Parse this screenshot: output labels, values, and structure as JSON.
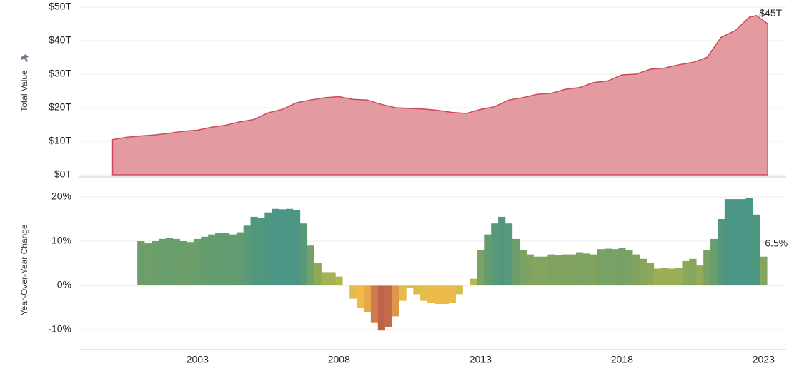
{
  "chart_data": [
    {
      "type": "area",
      "ylabel": "Total Value",
      "color": "#e39aa1",
      "line_color": "#d0485a",
      "x": [
        2000,
        2000.5,
        2001,
        2001.5,
        2002,
        2002.5,
        2003,
        2003.5,
        2004,
        2004.5,
        2005,
        2005.5,
        2006,
        2006.5,
        2007,
        2007.5,
        2008,
        2008.5,
        2009,
        2009.5,
        2010,
        2010.5,
        2011,
        2011.5,
        2012,
        2012.5,
        2013,
        2013.5,
        2014,
        2014.5,
        2015,
        2015.5,
        2016,
        2016.5,
        2017,
        2017.5,
        2018,
        2018.5,
        2019,
        2019.5,
        2020,
        2020.5,
        2021,
        2021.5,
        2022,
        2022.5,
        2022.75,
        2023,
        2023.15
      ],
      "values": [
        10.5,
        11.2,
        11.6,
        11.9,
        12.4,
        13,
        13.3,
        14.2,
        14.8,
        15.8,
        16.5,
        18.5,
        19.5,
        21.5,
        22.3,
        23,
        23.3,
        22.5,
        22.3,
        21,
        20,
        19.8,
        19.6,
        19.2,
        18.6,
        18.3,
        19.5,
        20.3,
        22.3,
        23,
        24,
        24.3,
        25.5,
        26,
        27.5,
        28,
        29.8,
        30,
        31.5,
        31.8,
        32.8,
        33.5,
        35,
        41,
        43,
        47,
        47.5,
        46,
        45
      ],
      "value_labels": [
        null,
        null,
        null,
        null,
        null,
        null,
        null,
        null,
        null,
        null,
        null,
        null,
        null,
        null,
        null,
        null,
        null,
        null,
        null,
        null,
        null,
        null,
        null,
        null,
        null,
        null,
        null,
        null,
        null,
        null,
        null,
        null,
        null,
        null,
        null,
        null,
        null,
        null,
        null,
        null,
        null,
        null,
        null,
        null,
        null,
        null,
        null,
        null,
        "$45T"
      ],
      "xlim": [
        1998.8,
        2023.8
      ],
      "ylim": [
        0,
        50
      ],
      "yticks": [
        {
          "value": 0,
          "label": "$0T"
        },
        {
          "value": 10,
          "label": "$10T"
        },
        {
          "value": 20,
          "label": "$20T"
        },
        {
          "value": 30,
          "label": "$30T"
        },
        {
          "value": 40,
          "label": "$40T"
        },
        {
          "value": 50,
          "label": "$50T"
        }
      ],
      "grid": true
    },
    {
      "type": "bar",
      "ylabel": "Year-Over-Year Change",
      "x": [
        2001,
        2001.25,
        2001.5,
        2001.75,
        2002,
        2002.25,
        2002.5,
        2002.75,
        2003,
        2003.25,
        2003.5,
        2003.75,
        2004,
        2004.25,
        2004.5,
        2004.75,
        2005,
        2005.25,
        2005.5,
        2005.75,
        2006,
        2006.25,
        2006.5,
        2006.75,
        2007,
        2007.25,
        2007.5,
        2007.75,
        2008,
        2008.25,
        2008.5,
        2008.75,
        2009,
        2009.25,
        2009.5,
        2009.75,
        2010,
        2010.25,
        2010.5,
        2010.75,
        2011,
        2011.25,
        2011.5,
        2011.75,
        2012,
        2012.25,
        2012.5,
        2012.75,
        2013,
        2013.25,
        2013.5,
        2013.75,
        2014,
        2014.25,
        2014.5,
        2014.75,
        2015,
        2015.25,
        2015.5,
        2015.75,
        2016,
        2016.25,
        2016.5,
        2016.75,
        2017,
        2017.25,
        2017.5,
        2017.75,
        2018,
        2018.25,
        2018.5,
        2018.75,
        2019,
        2019.25,
        2019.5,
        2019.75,
        2020,
        2020.25,
        2020.5,
        2020.75,
        2021,
        2021.25,
        2021.5,
        2021.75,
        2022,
        2022.25,
        2022.5,
        2022.75,
        2023
      ],
      "values": [
        10,
        9.5,
        10,
        10.5,
        10.8,
        10.5,
        10,
        9.8,
        10.5,
        11,
        11.5,
        11.8,
        11.8,
        11.5,
        12,
        13.5,
        15.5,
        15.2,
        16.5,
        17.3,
        17.2,
        17.3,
        17,
        14,
        9,
        5,
        3,
        3,
        2,
        0,
        -3,
        -5,
        -6,
        -8.5,
        -10.2,
        -9.5,
        -7,
        -3.5,
        -0.5,
        -2,
        -3.5,
        -4,
        -4.2,
        -4.2,
        -4,
        -2,
        0,
        1.5,
        8,
        11.5,
        14,
        15.5,
        14,
        10.5,
        8,
        7,
        6.5,
        6.5,
        7,
        6.8,
        7,
        7,
        7.5,
        7.2,
        7,
        8.2,
        8.3,
        8.2,
        8.5,
        8,
        7,
        6,
        5,
        3.8,
        4,
        3.8,
        4,
        5.5,
        6,
        4.5,
        8,
        10.5,
        15,
        19.5,
        19.5,
        19.5,
        19.8,
        16,
        6.5
      ],
      "value_labels": [
        null,
        null,
        null,
        null,
        null,
        null,
        null,
        null,
        null,
        null,
        null,
        null,
        null,
        null,
        null,
        null,
        null,
        null,
        null,
        null,
        null,
        null,
        null,
        null,
        null,
        null,
        null,
        null,
        null,
        null,
        null,
        null,
        null,
        null,
        null,
        null,
        null,
        null,
        null,
        null,
        null,
        null,
        null,
        null,
        null,
        null,
        null,
        null,
        null,
        null,
        null,
        null,
        null,
        null,
        null,
        null,
        null,
        null,
        null,
        null,
        null,
        null,
        null,
        null,
        null,
        null,
        null,
        null,
        null,
        null,
        null,
        null,
        null,
        null,
        null,
        null,
        null,
        null,
        null,
        null,
        null,
        null,
        null,
        null,
        null,
        null,
        null,
        null,
        "6.5%"
      ],
      "color_scale": {
        "domain": [
          -10,
          -5,
          0,
          5,
          10,
          17
        ],
        "range": [
          "#c0614a",
          "#f2b94b",
          "#c8c04a",
          "#8ea85a",
          "#6b9e6a",
          "#4a9584"
        ]
      },
      "xlim": [
        1998.8,
        2023.8
      ],
      "ylim": [
        -15,
        22
      ],
      "xticks": [
        2003,
        2008,
        2013,
        2018,
        2023
      ],
      "yticks": [
        {
          "value": -10,
          "label": "-10%"
        },
        {
          "value": 0,
          "label": "0%"
        },
        {
          "value": 10,
          "label": "10%"
        },
        {
          "value": 20,
          "label": "20%"
        }
      ],
      "grid": true
    }
  ]
}
